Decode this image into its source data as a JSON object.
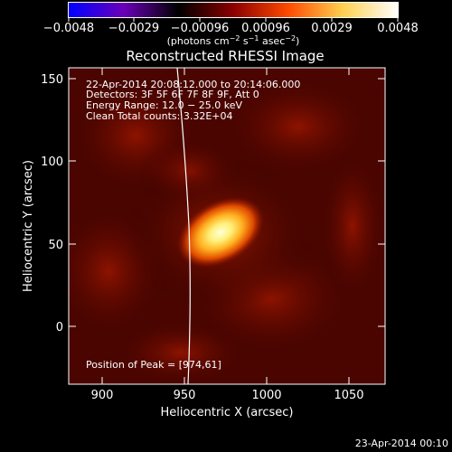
{
  "colorbar": {
    "ticks": [
      "−0.0048",
      "−0.0029",
      "−0.00096",
      "0.00096",
      "0.0029",
      "0.0048"
    ],
    "units_main": "(photons cm",
    "units_exp1": "−2",
    "units_mid": " s",
    "units_exp2": "−1",
    "units_mid2": " asec",
    "units_exp3": "−2",
    "units_end": ")",
    "gradient_stops": [
      "#0000ff",
      "#6a00b8",
      "#000000",
      "#8a0000",
      "#ff4a00",
      "#ffd050",
      "#ffffff"
    ]
  },
  "image": {
    "title": "Reconstructed RHESSI Image",
    "info_lines": [
      "22-Apr-2014 20:08:12.000 to 20:14:06.000",
      "Detectors: 3F 5F 6F 7F 8F 9F, Att 0",
      "Energy Range: 12.0 − 25.0 keV",
      "Clean    Total counts: 3.32E+04"
    ],
    "peak_label": "Position of Peak = [974,61]",
    "x_axis_label": "Heliocentric X (arcsec)",
    "y_axis_label": "Heliocentric Y (arcsec)",
    "x_ticks": [
      "900",
      "950",
      "1000",
      "1050"
    ],
    "y_ticks": [
      "0",
      "50",
      "100",
      "150"
    ],
    "x_range": [
      880,
      1072
    ],
    "y_range": [
      -37,
      157
    ],
    "peak_position": [
      974,
      61
    ]
  },
  "footer": {
    "timestamp": "23-Apr-2014 00:10"
  }
}
